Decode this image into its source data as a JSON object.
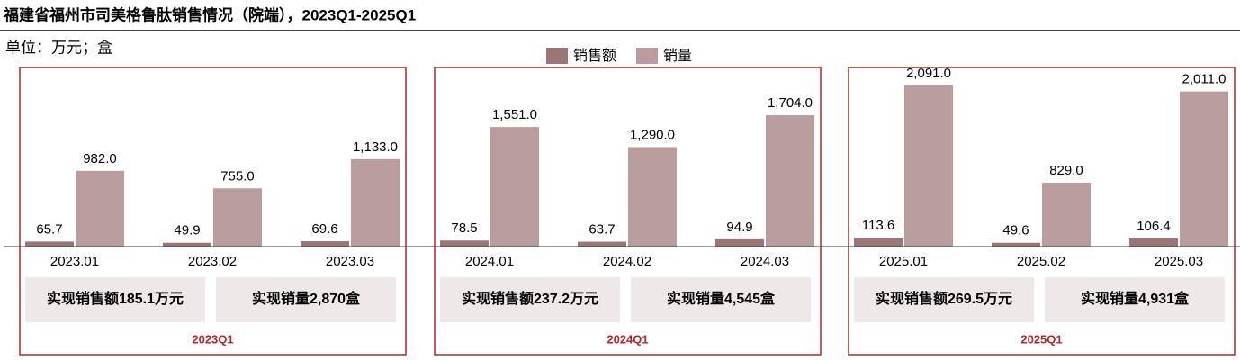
{
  "chart_data": {
    "type": "bar",
    "title": "福建省福州市司美格鲁肽销售情况（院端），2023Q1-2025Q1",
    "subtitle": "单位：万元；盒",
    "categories": [
      "2023.01",
      "2023.02",
      "2023.03",
      "2024.01",
      "2024.02",
      "2024.03",
      "2025.01",
      "2025.02",
      "2025.03"
    ],
    "series": [
      {
        "name": "销售额",
        "color": "#9c7677",
        "values": [
          65.7,
          49.9,
          69.6,
          78.5,
          63.7,
          94.9,
          113.6,
          49.6,
          106.4
        ],
        "value_labels": [
          "65.7",
          "49.9",
          "69.6",
          "78.5",
          "63.7",
          "94.9",
          "113.6",
          "49.6",
          "106.4"
        ]
      },
      {
        "name": "销量",
        "color": "#b99c9e",
        "values": [
          982,
          755,
          1133,
          1551,
          1290,
          1704,
          2091,
          829,
          2011
        ],
        "value_labels": [
          "982.0",
          "755.0",
          "1,133.0",
          "1,551.0",
          "1,290.0",
          "1,704.0",
          "2,091.0",
          "829.0",
          "2,011.0"
        ]
      }
    ],
    "panels": [
      {
        "label": "2023Q1",
        "notes": [
          "实现销售额185.1万元",
          "实现销量2,870盒"
        ]
      },
      {
        "label": "2024Q1",
        "notes": [
          "实现销售额237.2万元",
          "实现销量4,545盒"
        ]
      },
      {
        "label": "2025Q1",
        "notes": [
          "实现销售额269.5万元",
          "实现销量4,931盒"
        ]
      }
    ]
  }
}
